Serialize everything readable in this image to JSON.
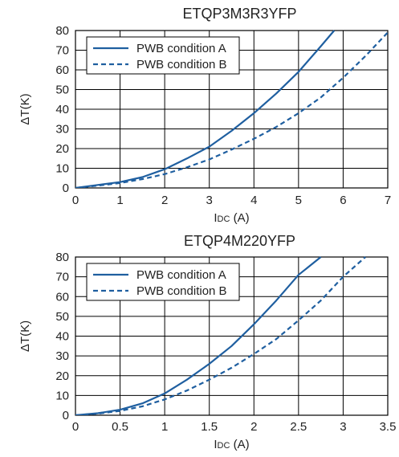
{
  "colors": {
    "line": "#1f5fa0",
    "grid": "#000000",
    "text": "#222222"
  },
  "chart_data": [
    {
      "type": "line",
      "title": "ETQP3M3R3YFP",
      "xlabel_main": "I",
      "xlabel_sub": "DC",
      "xlabel_unit": " (A)",
      "ylabel": "ΔT(K)",
      "xlim": [
        0,
        7
      ],
      "ylim": [
        0,
        80
      ],
      "xticks": [
        0,
        1,
        2,
        3,
        4,
        5,
        6,
        7
      ],
      "xtick_labels": [
        "0",
        "1",
        "2",
        "3",
        "4",
        "5",
        "6",
        "7"
      ],
      "yticks": [
        0,
        10,
        20,
        30,
        40,
        50,
        60,
        70,
        80
      ],
      "ytick_labels": [
        "0",
        "10",
        "20",
        "30",
        "40",
        "50",
        "60",
        "70",
        "80"
      ],
      "grid": true,
      "legend_position": "top-left",
      "series": [
        {
          "name": "PWB condition A",
          "style": "solid",
          "x": [
            0,
            0.5,
            1,
            1.5,
            2,
            2.5,
            3,
            3.5,
            4,
            4.5,
            5,
            5.5,
            5.8
          ],
          "y": [
            0,
            1.5,
            3,
            5.5,
            9.5,
            15,
            21,
            29,
            38,
            48,
            59,
            72,
            80
          ]
        },
        {
          "name": "PWB condition B",
          "style": "dashed",
          "x": [
            0,
            0.5,
            1,
            1.5,
            2,
            2.5,
            3,
            3.5,
            4,
            4.5,
            5,
            5.5,
            6,
            6.5,
            7
          ],
          "y": [
            0,
            1.2,
            2.5,
            4.5,
            7,
            10.5,
            14.5,
            19.5,
            25,
            31,
            38,
            46,
            56,
            67,
            79
          ]
        }
      ]
    },
    {
      "type": "line",
      "title": "ETQP4M220YFP",
      "xlabel_main": "I",
      "xlabel_sub": "DC",
      "xlabel_unit": " (A)",
      "ylabel": "ΔT(K)",
      "xlim": [
        0,
        3.5
      ],
      "ylim": [
        0,
        80
      ],
      "xticks": [
        0,
        0.5,
        1,
        1.5,
        2,
        2.5,
        3,
        3.5
      ],
      "xtick_labels": [
        "0",
        "0.5",
        "1",
        "1.5",
        "2",
        "2.5",
        "3",
        "3.5"
      ],
      "yticks": [
        0,
        10,
        20,
        30,
        40,
        50,
        60,
        70,
        80
      ],
      "ytick_labels": [
        "0",
        "10",
        "20",
        "30",
        "40",
        "50",
        "60",
        "70",
        "80"
      ],
      "grid": true,
      "legend_position": "top-left",
      "series": [
        {
          "name": "PWB condition A",
          "style": "solid",
          "x": [
            0,
            0.25,
            0.5,
            0.75,
            1,
            1.25,
            1.5,
            1.75,
            2,
            2.25,
            2.5,
            2.75
          ],
          "y": [
            0,
            1,
            2.8,
            6,
            11,
            18,
            26,
            35,
            46,
            58,
            71,
            80
          ]
        },
        {
          "name": "PWB condition B",
          "style": "dashed",
          "x": [
            0,
            0.25,
            0.5,
            0.75,
            1,
            1.25,
            1.5,
            1.75,
            2,
            2.25,
            2.5,
            2.75,
            3,
            3.25
          ],
          "y": [
            0,
            0.8,
            2.2,
            4.5,
            8,
            12.5,
            18,
            24,
            31,
            38.5,
            48,
            58,
            70,
            80
          ]
        }
      ]
    }
  ]
}
